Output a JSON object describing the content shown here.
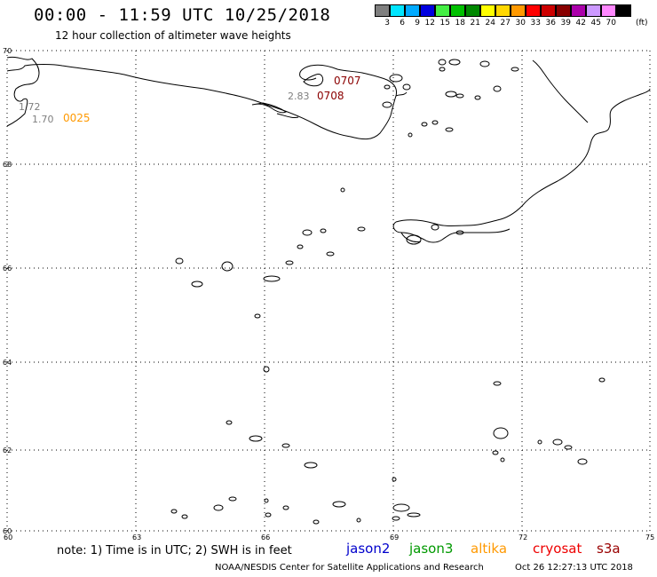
{
  "header": {
    "title": "00:00 - 11:59 UTC 10/25/2018",
    "subtitle": "12 hour collection of altimeter wave heights"
  },
  "color_scale": {
    "values": [
      "3",
      "6",
      "9",
      "12",
      "15",
      "18",
      "21",
      "24",
      "27",
      "30",
      "33",
      "36",
      "39",
      "42",
      "45",
      "70"
    ],
    "colors": [
      "#7f7f7f",
      "#00e5ff",
      "#00aaff",
      "#0000e0",
      "#44ee44",
      "#00c000",
      "#008800",
      "#ffff00",
      "#ffd700",
      "#ff9900",
      "#ff0000",
      "#cc0000",
      "#880000",
      "#aa00aa",
      "#cc99ff",
      "#ff88ff",
      "#000000"
    ],
    "unit": "(ft)"
  },
  "axes": {
    "lat_labels": [
      "70",
      "68",
      "66",
      "64",
      "62",
      "60"
    ],
    "lon_labels": [
      "60",
      "63",
      "66",
      "69",
      "72",
      "75"
    ]
  },
  "observations": [
    {
      "time": "0707",
      "color": "#8b0000"
    },
    {
      "time": "0708",
      "color": "#8b0000"
    },
    {
      "swh": "2.83",
      "color": "#7f7f7f"
    },
    {
      "swh": "1.72",
      "color": "#7f7f7f"
    },
    {
      "swh": "1.70",
      "color": "#7f7f7f"
    },
    {
      "time": "0025",
      "color": "#ff9900"
    }
  ],
  "footer": {
    "note": "note: 1) Time is in UTC; 2) SWH is in feet",
    "satellites": [
      {
        "name": "jason2",
        "color": "#0000cc"
      },
      {
        "name": "jason3",
        "color": "#009900"
      },
      {
        "name": "altika",
        "color": "#ff9900"
      },
      {
        "name": "cryosat",
        "color": "#ee0000"
      },
      {
        "name": "s3a",
        "color": "#990000"
      }
    ],
    "credit": "NOAA/NESDIS Center for Satellite Applications and Research",
    "generated": "Oct 26 12:27:13 UTC 2018"
  }
}
